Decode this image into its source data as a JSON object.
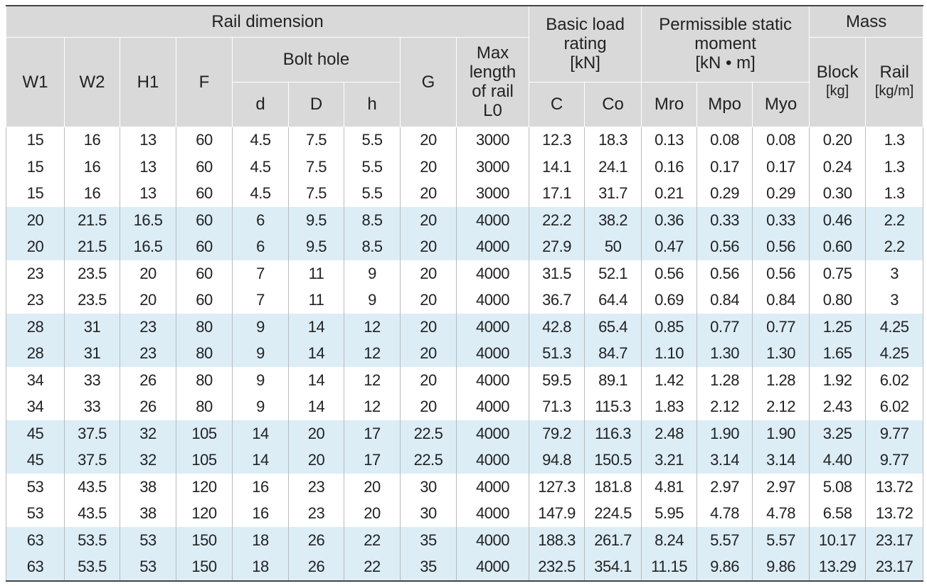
{
  "header": {
    "rail_dimension": "Rail dimension",
    "W1": "W1",
    "W2": "W2",
    "H1": "H1",
    "F": "F",
    "bolt_hole": "Bolt hole",
    "d": "d",
    "D": "D",
    "h": "h",
    "G": "G",
    "max_length": [
      "Max",
      "length",
      "of rail",
      "L0"
    ],
    "basic_load_rating": [
      "Basic load",
      "rating",
      "[kN]"
    ],
    "C": "C",
    "Co": "Co",
    "permissible_static_moment": [
      "Permissible static",
      "moment",
      "[kN • m]"
    ],
    "Mro": "Mro",
    "Mpo": "Mpo",
    "Myo": "Myo",
    "mass": "Mass",
    "block": "Block",
    "block_unit": "[kg]",
    "rail": "Rail",
    "rail_unit": "[kg/m]"
  },
  "table": {
    "rows": [
      [
        "15",
        "16",
        "13",
        "60",
        "4.5",
        "7.5",
        "5.5",
        "20",
        "3000",
        "12.3",
        "18.3",
        "0.13",
        "0.08",
        "0.08",
        "0.20",
        "1.3"
      ],
      [
        "15",
        "16",
        "13",
        "60",
        "4.5",
        "7.5",
        "5.5",
        "20",
        "3000",
        "14.1",
        "24.1",
        "0.16",
        "0.17",
        "0.17",
        "0.24",
        "1.3"
      ],
      [
        "15",
        "16",
        "13",
        "60",
        "4.5",
        "7.5",
        "5.5",
        "20",
        "3000",
        "17.1",
        "31.7",
        "0.21",
        "0.29",
        "0.29",
        "0.30",
        "1.3"
      ],
      [
        "20",
        "21.5",
        "16.5",
        "60",
        "6",
        "9.5",
        "8.5",
        "20",
        "4000",
        "22.2",
        "38.2",
        "0.36",
        "0.33",
        "0.33",
        "0.46",
        "2.2"
      ],
      [
        "20",
        "21.5",
        "16.5",
        "60",
        "6",
        "9.5",
        "8.5",
        "20",
        "4000",
        "27.9",
        "50",
        "0.47",
        "0.56",
        "0.56",
        "0.60",
        "2.2"
      ],
      [
        "23",
        "23.5",
        "20",
        "60",
        "7",
        "11",
        "9",
        "20",
        "4000",
        "31.5",
        "52.1",
        "0.56",
        "0.56",
        "0.56",
        "0.75",
        "3"
      ],
      [
        "23",
        "23.5",
        "20",
        "60",
        "7",
        "11",
        "9",
        "20",
        "4000",
        "36.7",
        "64.4",
        "0.69",
        "0.84",
        "0.84",
        "0.80",
        "3"
      ],
      [
        "28",
        "31",
        "23",
        "80",
        "9",
        "14",
        "12",
        "20",
        "4000",
        "42.8",
        "65.4",
        "0.85",
        "0.77",
        "0.77",
        "1.25",
        "4.25"
      ],
      [
        "28",
        "31",
        "23",
        "80",
        "9",
        "14",
        "12",
        "20",
        "4000",
        "51.3",
        "84.7",
        "1.10",
        "1.30",
        "1.30",
        "1.65",
        "4.25"
      ],
      [
        "34",
        "33",
        "26",
        "80",
        "9",
        "14",
        "12",
        "20",
        "4000",
        "59.5",
        "89.1",
        "1.42",
        "1.28",
        "1.28",
        "1.92",
        "6.02"
      ],
      [
        "34",
        "33",
        "26",
        "80",
        "9",
        "14",
        "12",
        "20",
        "4000",
        "71.3",
        "115.3",
        "1.83",
        "2.12",
        "2.12",
        "2.43",
        "6.02"
      ],
      [
        "45",
        "37.5",
        "32",
        "105",
        "14",
        "20",
        "17",
        "22.5",
        "4000",
        "79.2",
        "116.3",
        "2.48",
        "1.90",
        "1.90",
        "3.25",
        "9.77"
      ],
      [
        "45",
        "37.5",
        "32",
        "105",
        "14",
        "20",
        "17",
        "22.5",
        "4000",
        "94.8",
        "150.5",
        "3.21",
        "3.14",
        "3.14",
        "4.40",
        "9.77"
      ],
      [
        "53",
        "43.5",
        "38",
        "120",
        "16",
        "23",
        "20",
        "30",
        "4000",
        "127.3",
        "181.8",
        "4.81",
        "2.97",
        "2.97",
        "5.08",
        "13.72"
      ],
      [
        "53",
        "43.5",
        "38",
        "120",
        "16",
        "23",
        "20",
        "30",
        "4000",
        "147.9",
        "224.5",
        "5.95",
        "4.78",
        "4.78",
        "6.58",
        "13.72"
      ],
      [
        "63",
        "53.5",
        "53",
        "150",
        "18",
        "26",
        "22",
        "35",
        "4000",
        "188.3",
        "261.7",
        "8.24",
        "5.57",
        "5.57",
        "10.17",
        "23.17"
      ],
      [
        "63",
        "53.5",
        "53",
        "150",
        "18",
        "26",
        "22",
        "35",
        "4000",
        "232.5",
        "354.1",
        "11.15",
        "9.86",
        "9.86",
        "13.29",
        "23.17"
      ]
    ]
  }
}
